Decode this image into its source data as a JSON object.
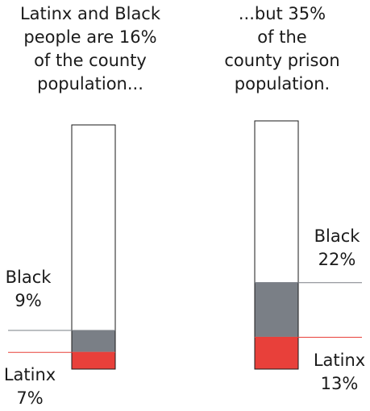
{
  "captions": {
    "left": [
      "Latinx and Black",
      "people are 16%",
      "of the county",
      "population..."
    ],
    "right": [
      "...but 35%",
      "of the",
      "county prison",
      "population."
    ]
  },
  "colors": {
    "black_group": "#7a7f86",
    "latinx_group": "#e8403a",
    "outline": "#1a1a1a",
    "black_leader": "#7a7f86",
    "latinx_leader": "#e8403a"
  },
  "chart_data": [
    {
      "type": "bar",
      "title": "Latinx and Black people are 16% of the county population...",
      "stacked": true,
      "ylim": [
        0,
        100
      ],
      "series": [
        {
          "name": "Latinx",
          "values": [
            7
          ]
        },
        {
          "name": "Black",
          "values": [
            9
          ]
        }
      ],
      "labels": {
        "black": {
          "name": "Black",
          "pct": "9%"
        },
        "latinx": {
          "name": "Latinx",
          "pct": "7%"
        }
      }
    },
    {
      "type": "bar",
      "title": "...but 35% of the county prison population.",
      "stacked": true,
      "ylim": [
        0,
        100
      ],
      "series": [
        {
          "name": "Latinx",
          "values": [
            13
          ]
        },
        {
          "name": "Black",
          "values": [
            22
          ]
        }
      ],
      "labels": {
        "black": {
          "name": "Black",
          "pct": "22%"
        },
        "latinx": {
          "name": "Latinx",
          "pct": "13%"
        }
      }
    }
  ]
}
